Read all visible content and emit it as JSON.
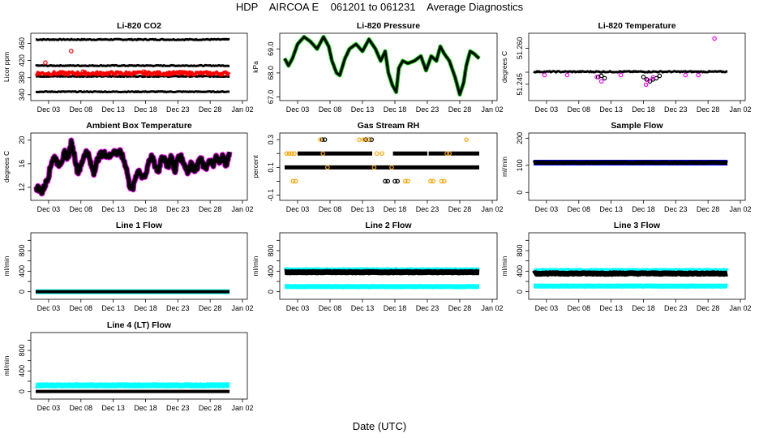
{
  "page": {
    "title": "HDP    AIRCOA E    061201 to 061231    Average Diagnostics",
    "x_axis_title": "Date (UTC)"
  },
  "shared_x": {
    "start_day": 0,
    "end_day": 32,
    "tick_days": [
      2,
      7,
      12,
      17,
      22,
      27,
      32
    ],
    "tick_labels": [
      "Dec 03",
      "Dec 08",
      "Dec 13",
      "Dec 18",
      "Dec 23",
      "Dec 28",
      "Jan 02"
    ],
    "data_start_day": 0,
    "data_end_day": 30
  },
  "colors": {
    "black": "#000000",
    "red": "#ff0000",
    "green": "#00cc00",
    "magenta": "#ff00ff",
    "orange": "#ffa500",
    "cyan": "#00ffff",
    "blue": "#0000ff"
  },
  "chart_data": [
    {
      "id": "li820-co2",
      "type": "scatter",
      "title": "Li-820 CO2",
      "ylabel": "Licor ppm",
      "ylim": [
        332,
        478
      ],
      "yticks": [
        340,
        380,
        420,
        460
      ],
      "ytick_labels": [
        "340",
        "380",
        "420",
        "460"
      ],
      "series": [
        {
          "name": "std-high",
          "color": "black",
          "kind": "flat",
          "value": 469,
          "noise": 1.2
        },
        {
          "name": "std-mid",
          "color": "black",
          "kind": "flat",
          "value": 408,
          "noise": 1.0
        },
        {
          "name": "std-low",
          "color": "black",
          "kind": "flat",
          "value": 383,
          "noise": 1.0
        },
        {
          "name": "std-lowest",
          "color": "black",
          "kind": "flat",
          "value": 347,
          "noise": 1.0
        },
        {
          "name": "sample",
          "color": "red",
          "kind": "flat",
          "value": 390,
          "noise": 4,
          "thick": 4
        },
        {
          "name": "sample-outliers",
          "color": "red",
          "kind": "points",
          "points": [
            [
              1.5,
              415
            ],
            [
              5.5,
              442
            ],
            [
              7.3,
              394
            ],
            [
              16.7,
              394
            ],
            [
              22.3,
              393
            ]
          ]
        }
      ]
    },
    {
      "id": "li820-pressure",
      "type": "line",
      "title": "Li-820 Pressure",
      "ylabel": "kPa",
      "ylim": [
        66.95,
        69.55
      ],
      "yticks": [
        67.0,
        68.0,
        69.0
      ],
      "ytick_labels": [
        "67.0",
        "68.0",
        "69.0"
      ],
      "series": [
        {
          "name": "pressure",
          "color": "black",
          "edge": "green",
          "kind": "line",
          "thick": 3,
          "x": [
            0,
            0.6,
            1.2,
            2,
            3,
            4,
            5,
            6,
            6.8,
            7.3,
            8,
            8.5,
            9.3,
            10,
            11,
            12,
            13,
            14,
            14.8,
            15.5,
            16,
            16.6,
            17.2,
            17.6,
            18.2,
            19,
            20,
            21,
            21.8,
            22.6,
            23.4,
            24,
            24.6,
            25.4,
            26.3,
            27,
            27.6,
            28,
            28.6,
            29.2,
            30
          ],
          "y": [
            68.6,
            68.3,
            68.6,
            69.2,
            69.5,
            69.3,
            69.0,
            69.5,
            69.1,
            68.5,
            68.0,
            67.9,
            68.6,
            69.0,
            69.2,
            68.9,
            69.4,
            69.0,
            68.5,
            68.9,
            68.0,
            67.5,
            67.2,
            68.2,
            68.5,
            68.4,
            68.5,
            68.7,
            68.1,
            68.7,
            68.5,
            69.1,
            68.8,
            68.5,
            67.8,
            67.1,
            67.6,
            68.3,
            68.9,
            68.8,
            68.6
          ]
        }
      ]
    },
    {
      "id": "li820-temperature",
      "type": "scatter",
      "title": "Li-820 Temperature",
      "ylabel": "degrees C",
      "ylim": [
        51.2392,
        51.2652
      ],
      "yticks": [
        51.245,
        51.26
      ],
      "ytick_labels": [
        "51.245",
        "51.260"
      ],
      "ytick_mid": [
        51.25
      ],
      "series": [
        {
          "name": "temperature",
          "color": "black",
          "kind": "flat",
          "value": 51.2502,
          "noise": 0.00025,
          "thick": 3
        },
        {
          "name": "low-excursions",
          "color": "black",
          "kind": "points",
          "points": [
            [
              10,
              51.248
            ],
            [
              10.5,
              51.2485
            ],
            [
              11,
              51.2475
            ],
            [
              17,
              51.248
            ],
            [
              17.5,
              51.247
            ],
            [
              18,
              51.2462
            ],
            [
              18.5,
              51.247
            ],
            [
              19,
              51.2475
            ],
            [
              19.5,
              51.2485
            ]
          ]
        },
        {
          "name": "outliers",
          "color": "magenta",
          "kind": "points",
          "points": [
            [
              1.7,
              51.2488
            ],
            [
              5.2,
              51.2488
            ],
            [
              9.8,
              51.248
            ],
            [
              10.5,
              51.2462
            ],
            [
              13.5,
              51.2488
            ],
            [
              17.4,
              51.2448
            ],
            [
              17.7,
              51.2468
            ],
            [
              18.5,
              51.2478
            ],
            [
              23.5,
              51.2488
            ],
            [
              25.5,
              51.2488
            ],
            [
              28,
              51.264
            ]
          ]
        }
      ]
    },
    {
      "id": "ambient-box-temperature",
      "type": "line",
      "title": "Ambient Box Temperature",
      "ylabel": "degrees C",
      "ylim": [
        10.2,
        20.8
      ],
      "yticks": [
        12,
        16,
        20
      ],
      "ytick_labels": [
        "12",
        "16",
        "20"
      ],
      "series": [
        {
          "name": "box-temp",
          "color": "black",
          "edge": "magenta",
          "kind": "line",
          "thick": 5,
          "jagged": 1.0,
          "x": [
            0,
            0.5,
            1,
            1.5,
            2,
            2.5,
            3,
            3.5,
            4,
            4.5,
            5,
            5.5,
            6,
            6.5,
            7,
            7.5,
            8,
            8.5,
            9,
            9.5,
            10,
            10.5,
            11,
            11.5,
            12,
            12.5,
            13,
            13.5,
            14,
            14.5,
            15,
            15.5,
            16,
            16.5,
            17,
            17.5,
            18,
            18.5,
            19,
            19.5,
            20,
            20.5,
            21,
            21.5,
            22,
            22.5,
            23,
            23.5,
            24,
            24.5,
            25,
            25.5,
            26,
            26.5,
            27,
            27.5,
            28,
            28.5,
            29,
            29.5,
            30
          ],
          "y": [
            12.0,
            11.8,
            11.2,
            12.5,
            14.0,
            16.5,
            17.2,
            15.8,
            16.5,
            17.8,
            17.0,
            19.5,
            17.5,
            14.5,
            15.5,
            17.5,
            18.2,
            16.0,
            14.5,
            16.5,
            17.5,
            17.8,
            17.5,
            17.2,
            18.2,
            17.8,
            18.0,
            17.0,
            15.5,
            12.5,
            11.5,
            14.0,
            15.0,
            13.5,
            14.0,
            16.5,
            17.2,
            15.5,
            14.5,
            17.5,
            16.5,
            15.5,
            17.5,
            14.5,
            17.0,
            17.0,
            16.0,
            14.5,
            16.0,
            15.0,
            15.5,
            17.0,
            15.5,
            15.5,
            16.5,
            15.5,
            17.5,
            16.0,
            17.5,
            15.5,
            18.0
          ]
        }
      ]
    },
    {
      "id": "gas-stream-rh",
      "type": "scatter",
      "title": "Gas Stream RH",
      "ylabel": "percent",
      "ylim": [
        -0.12,
        0.33
      ],
      "yticks": [
        -0.1,
        0.1,
        0.3
      ],
      "ytick_labels": [
        "-0.1",
        "0.1",
        "0.3"
      ],
      "ytick_mid": [
        0.0,
        0.2
      ],
      "series": [
        {
          "name": "rh-0.1",
          "color": "black",
          "kind": "flat",
          "value": 0.1,
          "noise": 0,
          "thick": 5
        },
        {
          "name": "rh-0.2",
          "color": "black",
          "kind": "segments",
          "value": 0.2,
          "thick": 5,
          "segments": [
            [
              2.0,
              13.5
            ],
            [
              16.7,
              22.0
            ],
            [
              22.2,
              30.0
            ]
          ]
        },
        {
          "name": "rh-0.3",
          "color": "black",
          "kind": "points",
          "points": [
            [
              5.8,
              0.3
            ],
            [
              6.2,
              0.3
            ],
            [
              12.5,
              0.3
            ],
            [
              13.0,
              0.3
            ],
            [
              13.4,
              0.3
            ]
          ]
        },
        {
          "name": "rh-0.0",
          "color": "black",
          "kind": "points",
          "points": [
            [
              15.5,
              0.0
            ],
            [
              15.9,
              0.0
            ],
            [
              17.0,
              0.0
            ],
            [
              17.4,
              0.0
            ]
          ]
        },
        {
          "name": "rh-orange",
          "color": "orange",
          "kind": "points",
          "points": [
            [
              0.3,
              0.2
            ],
            [
              0.7,
              0.2
            ],
            [
              1.1,
              0.2
            ],
            [
              1.5,
              0.2
            ],
            [
              1.3,
              0.0
            ],
            [
              1.7,
              0.0
            ],
            [
              5.5,
              0.3
            ],
            [
              5.9,
              0.2
            ],
            [
              6.6,
              0.1
            ],
            [
              11.5,
              0.3
            ],
            [
              12.2,
              0.3
            ],
            [
              12.9,
              0.3
            ],
            [
              13.8,
              0.1
            ],
            [
              14.2,
              0.2
            ],
            [
              15.0,
              0.2
            ],
            [
              16.5,
              0.1
            ],
            [
              18.6,
              0.0
            ],
            [
              19.0,
              0.0
            ],
            [
              22.5,
              0.0
            ],
            [
              22.9,
              0.0
            ],
            [
              24.2,
              0.0
            ],
            [
              24.6,
              0.0
            ],
            [
              25.0,
              0.2
            ],
            [
              25.4,
              0.2
            ],
            [
              28.0,
              0.3
            ]
          ]
        }
      ]
    },
    {
      "id": "sample-flow",
      "type": "scatter",
      "title": "Sample Flow",
      "ylabel": "ml/min",
      "ylim": [
        -20,
        210
      ],
      "yticks": [
        0,
        100,
        200
      ],
      "ytick_labels": [
        "0",
        "100",
        "200"
      ],
      "series": [
        {
          "name": "flow",
          "color": "black",
          "edge": "blue",
          "kind": "flat",
          "value": 110,
          "noise": 1.5,
          "thick": 5
        }
      ]
    },
    {
      "id": "line-1-flow",
      "type": "scatter",
      "title": "Line 1 Flow",
      "ylabel": "ml/min",
      "ylim": [
        -100,
        1100
      ],
      "yticks": [
        0,
        200,
        400,
        600,
        800,
        1000
      ],
      "ytick_labels": [
        "0",
        "",
        "400",
        "",
        "800",
        ""
      ],
      "series": [
        {
          "name": "flow",
          "color": "black",
          "edge": "cyan",
          "kind": "flat",
          "value": 0,
          "noise": 0,
          "thick": 4
        }
      ]
    },
    {
      "id": "line-2-flow",
      "type": "scatter",
      "title": "Line 2 Flow",
      "ylabel": "ml/min",
      "ylim": [
        -100,
        1100
      ],
      "yticks": [
        0,
        200,
        400,
        600,
        800,
        1000
      ],
      "ytick_labels": [
        "0",
        "",
        "400",
        "",
        "800",
        ""
      ],
      "series": [
        {
          "name": "flow-high",
          "color": "cyan",
          "kind": "flat",
          "value": 425,
          "noise": 6,
          "thick": 6
        },
        {
          "name": "flow-main",
          "color": "black",
          "kind": "flat",
          "value": 380,
          "noise": 5,
          "thick": 7
        },
        {
          "name": "flow-low",
          "color": "cyan",
          "kind": "flat",
          "value": 100,
          "noise": 4,
          "thick": 6
        }
      ]
    },
    {
      "id": "line-3-flow",
      "type": "scatter",
      "title": "Line 3 Flow",
      "ylabel": "ml/min",
      "ylim": [
        -100,
        1100
      ],
      "yticks": [
        0,
        200,
        400,
        600,
        800,
        1000
      ],
      "ytick_labels": [
        "0",
        "",
        "400",
        "",
        "800",
        ""
      ],
      "series": [
        {
          "name": "flow-high",
          "color": "cyan",
          "kind": "flat",
          "value": 410,
          "noise": 8,
          "thick": 6
        },
        {
          "name": "flow-main",
          "color": "black",
          "kind": "flat",
          "value": 355,
          "noise": 8,
          "thick": 7
        },
        {
          "name": "flow-low",
          "color": "cyan",
          "kind": "flat",
          "value": 110,
          "noise": 4,
          "thick": 6
        }
      ]
    },
    {
      "id": "line-4-lt-flow",
      "type": "scatter",
      "title": "Line 4 (LT) Flow",
      "ylabel": "ml/min",
      "ylim": [
        -100,
        1100
      ],
      "yticks": [
        0,
        200,
        400,
        600,
        800,
        1000
      ],
      "ytick_labels": [
        "0",
        "",
        "400",
        "",
        "800",
        ""
      ],
      "series": [
        {
          "name": "flow-high",
          "color": "cyan",
          "kind": "flat",
          "value": 120,
          "noise": 5,
          "thick": 7
        },
        {
          "name": "flow-main",
          "color": "black",
          "kind": "flat",
          "value": 0,
          "noise": 0,
          "thick": 4
        }
      ]
    }
  ]
}
